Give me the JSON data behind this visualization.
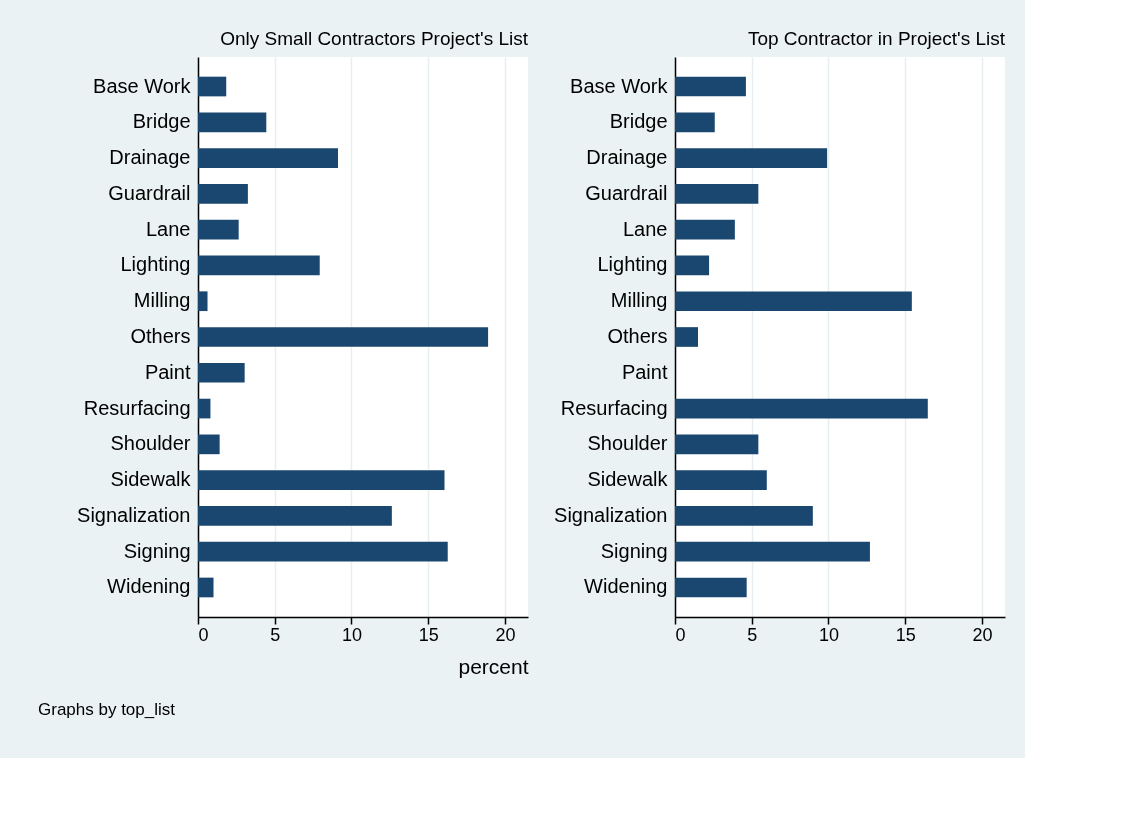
{
  "chart_data": [
    {
      "type": "bar",
      "orientation": "horizontal",
      "title": "Only Small Contractors Project's List",
      "xlabel": "percent",
      "categories": [
        "Base Work",
        "Bridge",
        "Drainage",
        "Guardrail",
        "Lane",
        "Lighting",
        "Milling",
        "Others",
        "Paint",
        "Resurfacing",
        "Shoulder",
        "Sidewalk",
        "Signalization",
        "Signing",
        "Widening"
      ],
      "series": [
        {
          "color": "#1a476f",
          "values": [
            1.84,
            4.45,
            9.12,
            3.25,
            2.65,
            7.93,
            0.62,
            18.9,
            3.04,
            0.81,
            1.41,
            16.06,
            12.63,
            16.27,
            1.01
          ]
        }
      ],
      "xlim": [
        0,
        21.5
      ],
      "xticks": [
        0,
        5,
        10,
        15,
        20
      ],
      "grid": "x",
      "annotations": [
        "Graphs by top_list"
      ]
    },
    {
      "type": "bar",
      "orientation": "horizontal",
      "title": "Top Contractor in Project's List",
      "categories": [
        "Base Work",
        "Bridge",
        "Drainage",
        "Guardrail",
        "Lane",
        "Lighting",
        "Milling",
        "Others",
        "Paint",
        "Resurfacing",
        "Shoulder",
        "Sidewalk",
        "Signalization",
        "Signing",
        "Widening"
      ],
      "series": [
        {
          "color": "#1a476f",
          "values": [
            4.62,
            2.59,
            9.91,
            5.43,
            3.9,
            2.22,
            15.43,
            1.5,
            null,
            16.47,
            5.43,
            5.98,
            8.98,
            12.7,
            4.67
          ]
        }
      ],
      "xlim": [
        0,
        21.5
      ],
      "xticks": [
        0,
        5,
        10,
        15,
        20
      ],
      "grid": "x"
    }
  ]
}
